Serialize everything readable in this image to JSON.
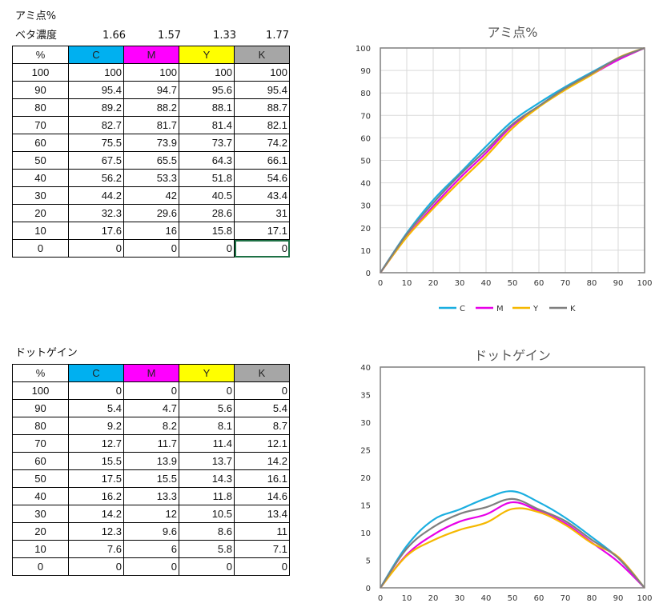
{
  "colors": {
    "C": "#1aaee0",
    "M": "#e800e8",
    "Y": "#f5b800",
    "K": "#7f7f7f",
    "grid": "#d9d9d9",
    "plot_border": "#7f7f7f"
  },
  "ami": {
    "title": "アミ点%",
    "beta_label": "ベタ濃度",
    "beta_values": [
      "1.66",
      "1.57",
      "1.33",
      "1.77"
    ],
    "headers": [
      "%",
      "C",
      "M",
      "Y",
      "K"
    ],
    "rows": [
      [
        "100",
        "100",
        "100",
        "100",
        "100"
      ],
      [
        "90",
        "95.4",
        "94.7",
        "95.6",
        "95.4"
      ],
      [
        "80",
        "89.2",
        "88.2",
        "88.1",
        "88.7"
      ],
      [
        "70",
        "82.7",
        "81.7",
        "81.4",
        "82.1"
      ],
      [
        "60",
        "75.5",
        "73.9",
        "73.7",
        "74.2"
      ],
      [
        "50",
        "67.5",
        "65.5",
        "64.3",
        "66.1"
      ],
      [
        "40",
        "56.2",
        "53.3",
        "51.8",
        "54.6"
      ],
      [
        "30",
        "44.2",
        "42",
        "40.5",
        "43.4"
      ],
      [
        "20",
        "32.3",
        "29.6",
        "28.6",
        "31"
      ],
      [
        "10",
        "17.6",
        "16",
        "15.8",
        "17.1"
      ],
      [
        "0",
        "0",
        "0",
        "0",
        "0"
      ]
    ]
  },
  "dot": {
    "title": "ドットゲイン",
    "headers": [
      "%",
      "C",
      "M",
      "Y",
      "K"
    ],
    "rows": [
      [
        "100",
        "0",
        "0",
        "0",
        "0"
      ],
      [
        "90",
        "5.4",
        "4.7",
        "5.6",
        "5.4"
      ],
      [
        "80",
        "9.2",
        "8.2",
        "8.1",
        "8.7"
      ],
      [
        "70",
        "12.7",
        "11.7",
        "11.4",
        "12.1"
      ],
      [
        "60",
        "15.5",
        "13.9",
        "13.7",
        "14.2"
      ],
      [
        "50",
        "17.5",
        "15.5",
        "14.3",
        "16.1"
      ],
      [
        "40",
        "16.2",
        "13.3",
        "11.8",
        "14.6"
      ],
      [
        "30",
        "14.2",
        "12",
        "10.5",
        "13.4"
      ],
      [
        "20",
        "12.3",
        "9.6",
        "8.6",
        "11"
      ],
      [
        "10",
        "7.6",
        "6",
        "5.8",
        "7.1"
      ],
      [
        "0",
        "0",
        "0",
        "0",
        "0"
      ]
    ]
  },
  "chart_data": [
    {
      "type": "line",
      "title": "アミ点%",
      "x": [
        0,
        10,
        20,
        30,
        40,
        50,
        60,
        70,
        80,
        90,
        100
      ],
      "xlim": [
        0,
        100
      ],
      "ylim": [
        0,
        100
      ],
      "xticks": [
        "0",
        "10",
        "20",
        "30",
        "40",
        "50",
        "60",
        "70",
        "80",
        "90",
        "100"
      ],
      "yticks": [
        "0",
        "10",
        "20",
        "30",
        "40",
        "50",
        "60",
        "70",
        "80",
        "90",
        "100"
      ],
      "grid": true,
      "legend": "bottom",
      "series": [
        {
          "name": "C",
          "color": "#1aaee0",
          "values": [
            0,
            17.6,
            32.3,
            44.2,
            56.2,
            67.5,
            75.5,
            82.7,
            89.2,
            95.4,
            100
          ]
        },
        {
          "name": "M",
          "color": "#e800e8",
          "values": [
            0,
            16,
            29.6,
            42,
            53.3,
            65.5,
            73.9,
            81.7,
            88.2,
            94.7,
            100
          ]
        },
        {
          "name": "Y",
          "color": "#f5b800",
          "values": [
            0,
            15.8,
            28.6,
            40.5,
            51.8,
            64.3,
            73.7,
            81.4,
            88.1,
            95.6,
            100
          ]
        },
        {
          "name": "K",
          "color": "#7f7f7f",
          "values": [
            0,
            17.1,
            31,
            43.4,
            54.6,
            66.1,
            74.2,
            82.1,
            88.7,
            95.4,
            100
          ]
        }
      ]
    },
    {
      "type": "line",
      "title": "ドットゲイン",
      "x": [
        0,
        10,
        20,
        30,
        40,
        50,
        60,
        70,
        80,
        90,
        100
      ],
      "xlim": [
        0,
        100
      ],
      "ylim": [
        0,
        40
      ],
      "xticks": [
        "0",
        "10",
        "20",
        "30",
        "40",
        "50",
        "60",
        "70",
        "80",
        "90",
        "100"
      ],
      "yticks": [
        "0",
        "5",
        "10",
        "15",
        "20",
        "25",
        "30",
        "35",
        "40"
      ],
      "grid": false,
      "series": [
        {
          "name": "C",
          "color": "#1aaee0",
          "values": [
            0,
            7.6,
            12.3,
            14.2,
            16.2,
            17.5,
            15.5,
            12.7,
            9.2,
            5.4,
            0
          ]
        },
        {
          "name": "M",
          "color": "#e800e8",
          "values": [
            0,
            6,
            9.6,
            12,
            13.3,
            15.5,
            13.9,
            11.7,
            8.2,
            4.7,
            0
          ]
        },
        {
          "name": "Y",
          "color": "#f5b800",
          "values": [
            0,
            5.8,
            8.6,
            10.5,
            11.8,
            14.3,
            13.7,
            11.4,
            8.1,
            5.6,
            0
          ]
        },
        {
          "name": "K",
          "color": "#7f7f7f",
          "values": [
            0,
            7.1,
            11,
            13.4,
            14.6,
            16.1,
            14.2,
            12.1,
            8.7,
            5.4,
            0
          ]
        }
      ]
    }
  ]
}
